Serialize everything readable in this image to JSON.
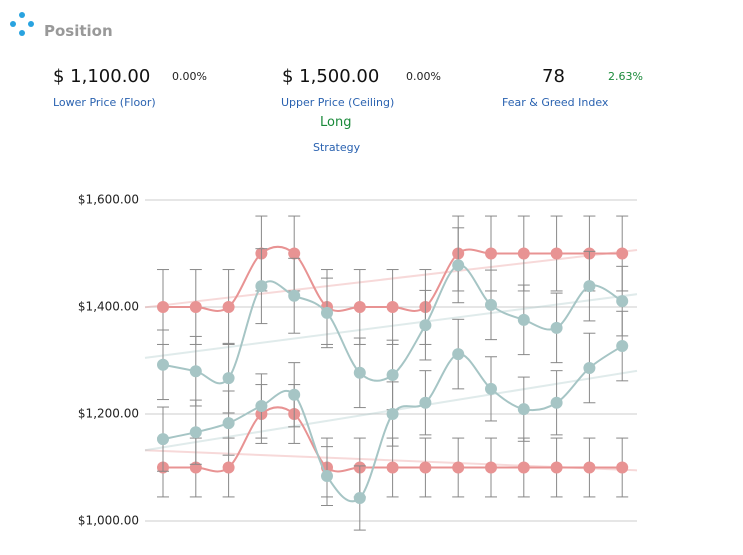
{
  "header": {
    "title": "Position"
  },
  "stats": [
    {
      "value": "$ 1,100.00",
      "change": "0.00%",
      "label": "Lower Price (Floor)"
    },
    {
      "value": "$ 1,500.00",
      "change": "0.00%",
      "label": "Upper Price (Ceiling)"
    },
    {
      "value": "78",
      "change": "2.63%",
      "label": "Fear & Greed Index"
    }
  ],
  "strategy": {
    "value": "Long",
    "label": "Strategy"
  },
  "chart_data": {
    "type": "line",
    "categories": [
      null,
      null,
      null,
      null,
      null,
      null,
      null,
      null,
      null,
      null,
      null,
      null,
      null,
      null,
      null
    ],
    "ylim": [
      1000,
      1600
    ],
    "yticks": [
      {
        "value": 1000,
        "label": "$1,000.00"
      },
      {
        "value": 1200,
        "label": "$1,200.00"
      },
      {
        "value": 1400,
        "label": "$1,400.00"
      },
      {
        "value": 1600,
        "label": "$1,600.00"
      }
    ],
    "grid": true,
    "series": [
      {
        "color": "#e89393",
        "values": [
          1400,
          1400,
          1400,
          1500,
          1500,
          1400,
          1400,
          1400,
          1400,
          1500,
          1500,
          1500,
          1500,
          1500,
          1500
        ],
        "errors": [
          70,
          70,
          70,
          70,
          70,
          70,
          70,
          70,
          70,
          70,
          70,
          70,
          70,
          70,
          70
        ]
      },
      {
        "color": "#e89393",
        "values": [
          1100,
          1100,
          1100,
          1200,
          1200,
          1100,
          1100,
          1100,
          1100,
          1100,
          1100,
          1100,
          1100,
          1100,
          1100
        ],
        "errors": [
          55,
          55,
          55,
          55,
          55,
          55,
          55,
          55,
          55,
          55,
          55,
          55,
          55,
          55,
          55
        ]
      },
      {
        "color": "#a6c5c5",
        "values": [
          1292,
          1280,
          1267,
          1439,
          1421,
          1389,
          1277,
          1273,
          1366,
          1478,
          1404,
          1376,
          1361,
          1439,
          1411
        ],
        "errors": [
          65,
          65,
          65,
          70,
          70,
          65,
          65,
          65,
          65,
          70,
          65,
          65,
          65,
          65,
          65
        ]
      },
      {
        "color": "#a6c5c5",
        "values": [
          1153,
          1166,
          1183,
          1215,
          1236,
          1084,
          1043,
          1200,
          1221,
          1312,
          1247,
          1209,
          1221,
          1286,
          1327
        ],
        "errors": [
          60,
          60,
          60,
          60,
          60,
          55,
          60,
          60,
          60,
          65,
          60,
          60,
          60,
          65,
          65
        ]
      }
    ]
  }
}
